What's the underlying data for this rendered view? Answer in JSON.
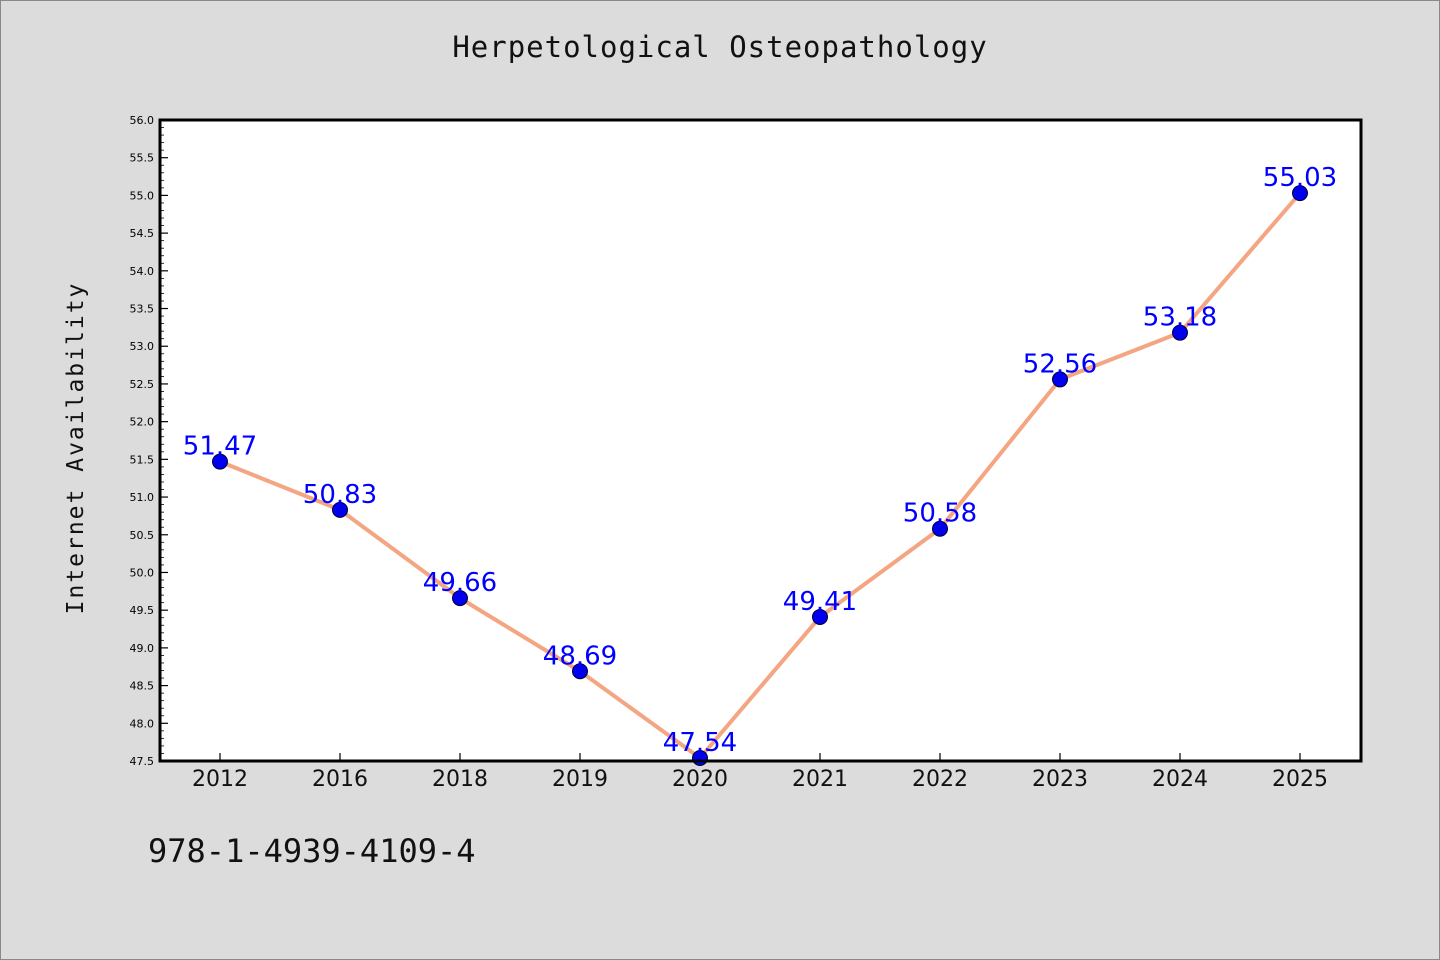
{
  "chart_data": {
    "type": "line",
    "title": "Herpetological Osteopathology",
    "xlabel": "",
    "ylabel": "Internet Availability",
    "categories": [
      "2012",
      "2016",
      "2018",
      "2019",
      "2020",
      "2021",
      "2022",
      "2023",
      "2024",
      "2025"
    ],
    "series": [
      {
        "values": [
          51.47,
          50.83,
          49.66,
          48.69,
          47.54,
          49.41,
          50.58,
          52.56,
          53.18,
          55.03
        ],
        "labels": [
          "51.47",
          "50.83",
          "49.66",
          "48.69",
          "47.54",
          "49.41",
          "50.58",
          "52.56",
          "53.18",
          "55.03"
        ]
      }
    ],
    "ylim": [
      47.5,
      56.0
    ],
    "yticks": [
      "47.5",
      "48.0",
      "48.5",
      "49.0",
      "49.5",
      "50.0",
      "50.5",
      "51.0",
      "51.5",
      "52.0",
      "52.5",
      "53.0",
      "53.5",
      "54.0",
      "54.5",
      "55.0",
      "55.5",
      "56.0"
    ],
    "grid": false,
    "colors": {
      "line": "#f4a582",
      "marker": "#0000ee",
      "label": "#0000ff",
      "plot_background": "#ffffff",
      "figure_background": "#dcdcdc"
    }
  },
  "footer": {
    "isbn": "978-1-4939-4109-4"
  }
}
